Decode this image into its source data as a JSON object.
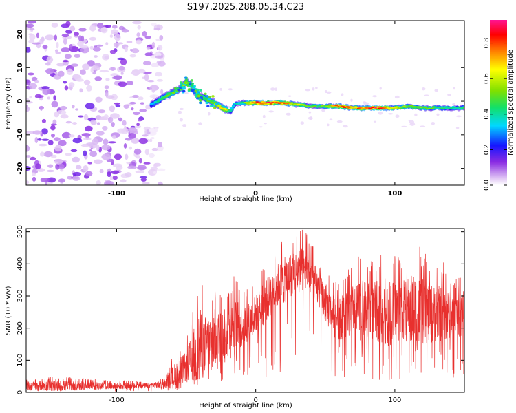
{
  "figure_title": "S197.2025.288.05.34.C23",
  "colors": {
    "accent": "#e8302e",
    "frame": "#000000"
  },
  "chart_data": [
    {
      "type": "heatmap",
      "title": "S197.2025.288.05.34.C23",
      "xlabel": "Height of straight line (km)",
      "ylabel": "Frequency (Hz)",
      "xlim": [
        -165,
        150
      ],
      "ylim": [
        -25,
        24
      ],
      "xticks": [
        -100,
        0,
        100
      ],
      "xtick_labels": [
        "-100",
        "0",
        "100"
      ],
      "yticks": [
        -20,
        -10,
        0,
        10,
        20
      ],
      "ytick_labels": [
        "-20",
        "-10",
        "0",
        "10",
        "20"
      ],
      "noise_region_x": [
        -165,
        -75
      ],
      "ridge": {
        "x": [
          -75,
          -70,
          -65,
          -60,
          -55,
          -50,
          -47,
          -44,
          -40,
          -35,
          -30,
          -26,
          -22,
          -18,
          -15,
          -10,
          0,
          10,
          20,
          30,
          40,
          50,
          60,
          70,
          80,
          90,
          100,
          110,
          120,
          130,
          140,
          150
        ],
        "freq": [
          -1,
          0,
          1.5,
          2.5,
          3.5,
          5.5,
          5.0,
          3.0,
          1.5,
          0.5,
          -0.5,
          -1.5,
          -2.5,
          -3.0,
          -1.0,
          -0.5,
          -0.5,
          -0.5,
          -0.5,
          -1.0,
          -1.5,
          -1.5,
          -1.5,
          -2.0,
          -2.0,
          -2.0,
          -2.0,
          -1.5,
          -2.0,
          -2.0,
          -2.0,
          -2.0
        ],
        "amplitude": [
          0.35,
          0.45,
          0.55,
          0.55,
          0.6,
          0.7,
          0.55,
          0.6,
          0.5,
          0.55,
          0.6,
          0.7,
          0.75,
          0.5,
          0.4,
          0.5,
          0.9,
          0.95,
          0.9,
          0.7,
          0.6,
          0.6,
          0.9,
          0.8,
          0.95,
          0.95,
          0.7,
          0.6,
          0.6,
          0.55,
          0.5,
          0.5
        ]
      },
      "colorbar": {
        "label": "Normalized spectral amplitude",
        "range": [
          0,
          0.93
        ],
        "ticks": [
          0.0,
          0.2,
          0.4,
          0.6,
          0.8
        ],
        "tick_labels": [
          "0.0",
          "0.2",
          "0.4",
          "0.6",
          "0.8"
        ]
      }
    },
    {
      "type": "line",
      "title": "",
      "xlabel": "Height of straight line (km)",
      "ylabel": "SNR (10 * v/v)",
      "xlim": [
        -165,
        150
      ],
      "ylim": [
        0,
        510
      ],
      "xticks": [
        -100,
        0,
        100
      ],
      "xtick_labels": [
        "-100",
        "0",
        "100"
      ],
      "yticks": [
        0,
        100,
        200,
        300,
        400,
        500
      ],
      "ytick_labels": [
        "0",
        "100",
        "200",
        "300",
        "400",
        "500"
      ],
      "series": [
        {
          "name": "SNR",
          "color": "#e8302e",
          "envelope_x": [
            -165,
            -140,
            -110,
            -80,
            -65,
            -60,
            -55,
            -50,
            -45,
            -40,
            -35,
            -30,
            -25,
            -20,
            -15,
            -10,
            -5,
            0,
            5,
            10,
            15,
            20,
            25,
            30,
            35,
            40,
            45,
            50,
            55,
            60,
            65,
            70,
            75,
            80,
            85,
            90,
            95,
            100,
            105,
            110,
            115,
            120,
            125,
            130,
            135,
            140,
            145,
            150
          ],
          "envelope_mean": [
            20,
            20,
            20,
            20,
            25,
            45,
            60,
            80,
            110,
            140,
            155,
            165,
            175,
            185,
            200,
            205,
            220,
            245,
            270,
            300,
            330,
            345,
            365,
            375,
            380,
            360,
            320,
            280,
            240,
            230,
            240,
            255,
            255,
            250,
            255,
            250,
            250,
            250,
            255,
            255,
            250,
            250,
            245,
            245,
            245,
            240,
            235,
            245
          ],
          "envelope_max": [
            45,
            50,
            40,
            35,
            45,
            110,
            150,
            160,
            260,
            360,
            300,
            340,
            320,
            330,
            370,
            320,
            330,
            350,
            390,
            420,
            460,
            480,
            490,
            500,
            510,
            470,
            420,
            390,
            360,
            350,
            380,
            400,
            430,
            420,
            420,
            430,
            450,
            430,
            420,
            450,
            480,
            440,
            420,
            400,
            410,
            370,
            360,
            380
          ]
        }
      ]
    }
  ]
}
